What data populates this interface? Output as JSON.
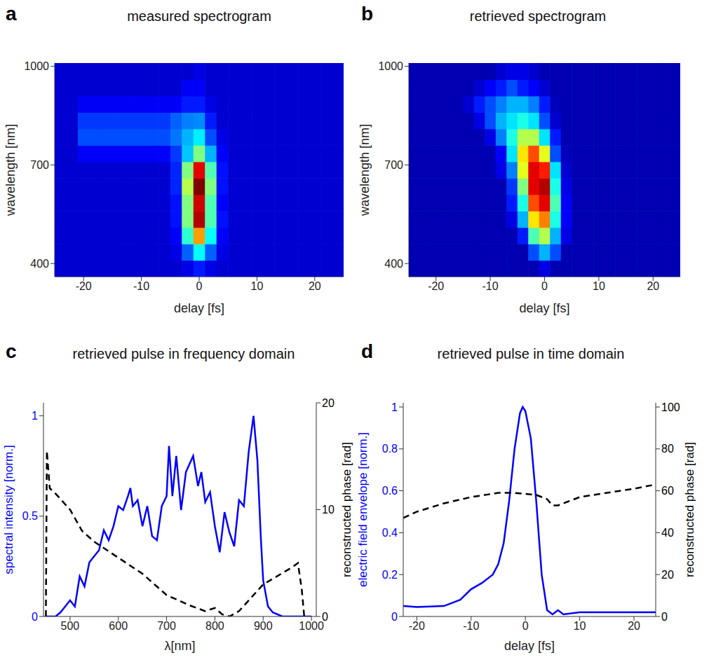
{
  "chart_data": [
    {
      "type": "heatmap",
      "label": "a",
      "title": "measured spectrogram",
      "x_label": "delay [fs]",
      "y_label": "wavelength [nm]",
      "x": [
        -24,
        -22,
        -20,
        -18,
        -16,
        -14,
        -12,
        -10,
        -8,
        -6,
        -4,
        -2,
        0,
        2,
        4,
        6,
        8,
        10,
        12,
        14,
        16,
        18,
        20,
        22,
        24
      ],
      "y": [
        385,
        435,
        485,
        535,
        585,
        635,
        685,
        735,
        785,
        835,
        885,
        935,
        985
      ],
      "cells": [
        [
          0.08,
          0.08,
          0.08,
          0.08,
          0.08,
          0.08,
          0.08,
          0.08,
          0.08,
          0.08,
          0.08,
          0.1,
          0.15,
          0.1,
          0.08,
          0.08,
          0.08,
          0.08,
          0.08,
          0.08,
          0.08,
          0.08,
          0.08,
          0.08,
          0.08
        ],
        [
          0.08,
          0.08,
          0.08,
          0.08,
          0.08,
          0.08,
          0.08,
          0.08,
          0.08,
          0.08,
          0.1,
          0.22,
          0.38,
          0.22,
          0.1,
          0.08,
          0.08,
          0.08,
          0.08,
          0.08,
          0.08,
          0.08,
          0.08,
          0.08,
          0.08
        ],
        [
          0.08,
          0.08,
          0.08,
          0.08,
          0.08,
          0.08,
          0.08,
          0.08,
          0.08,
          0.08,
          0.12,
          0.42,
          0.72,
          0.38,
          0.12,
          0.08,
          0.08,
          0.08,
          0.08,
          0.08,
          0.08,
          0.08,
          0.08,
          0.08,
          0.08
        ],
        [
          0.08,
          0.08,
          0.08,
          0.08,
          0.08,
          0.08,
          0.08,
          0.08,
          0.08,
          0.08,
          0.14,
          0.5,
          0.95,
          0.45,
          0.14,
          0.08,
          0.08,
          0.08,
          0.08,
          0.08,
          0.08,
          0.08,
          0.08,
          0.08,
          0.08
        ],
        [
          0.08,
          0.08,
          0.08,
          0.08,
          0.08,
          0.08,
          0.08,
          0.08,
          0.08,
          0.08,
          0.14,
          0.5,
          0.92,
          0.45,
          0.12,
          0.08,
          0.08,
          0.08,
          0.08,
          0.08,
          0.08,
          0.08,
          0.08,
          0.08,
          0.08
        ],
        [
          0.08,
          0.08,
          0.08,
          0.08,
          0.08,
          0.08,
          0.08,
          0.08,
          0.08,
          0.08,
          0.16,
          0.55,
          1,
          0.5,
          0.14,
          0.08,
          0.08,
          0.08,
          0.08,
          0.08,
          0.08,
          0.08,
          0.08,
          0.08,
          0.08
        ],
        [
          0.08,
          0.08,
          0.08,
          0.08,
          0.08,
          0.08,
          0.08,
          0.08,
          0.08,
          0.08,
          0.16,
          0.5,
          0.9,
          0.45,
          0.14,
          0.08,
          0.08,
          0.08,
          0.08,
          0.08,
          0.08,
          0.08,
          0.08,
          0.08,
          0.08
        ],
        [
          0.08,
          0.08,
          0.12,
          0.12,
          0.12,
          0.12,
          0.12,
          0.12,
          0.12,
          0.12,
          0.18,
          0.32,
          0.5,
          0.3,
          0.12,
          0.08,
          0.08,
          0.08,
          0.08,
          0.08,
          0.08,
          0.08,
          0.08,
          0.08,
          0.08
        ],
        [
          0.08,
          0.08,
          0.2,
          0.2,
          0.2,
          0.2,
          0.2,
          0.2,
          0.2,
          0.2,
          0.24,
          0.3,
          0.36,
          0.2,
          0.1,
          0.08,
          0.08,
          0.08,
          0.08,
          0.08,
          0.08,
          0.08,
          0.08,
          0.08,
          0.08
        ],
        [
          0.08,
          0.08,
          0.18,
          0.18,
          0.18,
          0.18,
          0.18,
          0.18,
          0.18,
          0.18,
          0.22,
          0.25,
          0.26,
          0.15,
          0.08,
          0.08,
          0.08,
          0.08,
          0.08,
          0.08,
          0.08,
          0.08,
          0.08,
          0.08,
          0.08
        ],
        [
          0.08,
          0.08,
          0.12,
          0.12,
          0.12,
          0.12,
          0.12,
          0.12,
          0.12,
          0.12,
          0.12,
          0.15,
          0.15,
          0.1,
          0.08,
          0.08,
          0.08,
          0.08,
          0.08,
          0.08,
          0.08,
          0.08,
          0.08,
          0.08,
          0.08
        ],
        [
          0.08,
          0.08,
          0.08,
          0.08,
          0.08,
          0.08,
          0.08,
          0.08,
          0.08,
          0.08,
          0.08,
          0.12,
          0.12,
          0.08,
          0.08,
          0.08,
          0.08,
          0.08,
          0.08,
          0.08,
          0.08,
          0.08,
          0.08,
          0.08,
          0.08
        ],
        [
          0.08,
          0.08,
          0.08,
          0.08,
          0.08,
          0.08,
          0.08,
          0.08,
          0.08,
          0.08,
          0.08,
          0.08,
          0.1,
          0.08,
          0.08,
          0.08,
          0.08,
          0.08,
          0.08,
          0.08,
          0.08,
          0.08,
          0.08,
          0.08,
          0.08
        ]
      ],
      "color_range": [
        0,
        1
      ],
      "xlim": [
        -25,
        25
      ],
      "xticks": [
        -20,
        -10,
        0,
        10,
        20
      ],
      "ylim": [
        360,
        1010
      ],
      "yticks": [
        400,
        700,
        1000
      ]
    },
    {
      "type": "heatmap",
      "label": "b",
      "title": "retrieved spectrogram",
      "x_label": "delay [fs]",
      "y_label": "wavelength [nm]",
      "x": [
        -24,
        -22,
        -20,
        -18,
        -16,
        -14,
        -12,
        -10,
        -8,
        -6,
        -4,
        -2,
        0,
        2,
        4,
        6,
        8,
        10,
        12,
        14,
        16,
        18,
        20,
        22,
        24
      ],
      "y": [
        385,
        435,
        485,
        535,
        585,
        635,
        685,
        735,
        785,
        835,
        885,
        935,
        985
      ],
      "cells": [
        [
          0.05,
          0.05,
          0.05,
          0.05,
          0.05,
          0.05,
          0.05,
          0.05,
          0.05,
          0.05,
          0.05,
          0.05,
          0.1,
          0.05,
          0.05,
          0.05,
          0.05,
          0.05,
          0.05,
          0.05,
          0.05,
          0.05,
          0.05,
          0.05,
          0.05
        ],
        [
          0.05,
          0.05,
          0.05,
          0.05,
          0.05,
          0.05,
          0.05,
          0.05,
          0.05,
          0.05,
          0.05,
          0.2,
          0.3,
          0.2,
          0.05,
          0.05,
          0.05,
          0.05,
          0.05,
          0.05,
          0.05,
          0.05,
          0.05,
          0.05,
          0.05
        ],
        [
          0.05,
          0.05,
          0.05,
          0.05,
          0.05,
          0.05,
          0.05,
          0.05,
          0.05,
          0.05,
          0.15,
          0.45,
          0.55,
          0.3,
          0.1,
          0.05,
          0.05,
          0.05,
          0.05,
          0.05,
          0.05,
          0.05,
          0.05,
          0.05,
          0.05
        ],
        [
          0.05,
          0.05,
          0.05,
          0.05,
          0.05,
          0.05,
          0.05,
          0.05,
          0.05,
          0.1,
          0.3,
          0.65,
          0.75,
          0.4,
          0.12,
          0.05,
          0.05,
          0.05,
          0.05,
          0.05,
          0.05,
          0.05,
          0.05,
          0.05,
          0.05
        ],
        [
          0.05,
          0.05,
          0.05,
          0.05,
          0.05,
          0.05,
          0.05,
          0.05,
          0.05,
          0.15,
          0.4,
          0.8,
          0.9,
          0.45,
          0.12,
          0.05,
          0.05,
          0.05,
          0.05,
          0.05,
          0.05,
          0.05,
          0.05,
          0.05,
          0.05
        ],
        [
          0.05,
          0.05,
          0.05,
          0.05,
          0.05,
          0.05,
          0.05,
          0.05,
          0.05,
          0.18,
          0.5,
          0.9,
          0.95,
          0.4,
          0.1,
          0.05,
          0.05,
          0.05,
          0.05,
          0.05,
          0.05,
          0.05,
          0.05,
          0.05,
          0.05
        ],
        [
          0.05,
          0.05,
          0.05,
          0.05,
          0.05,
          0.05,
          0.05,
          0.05,
          0.1,
          0.25,
          0.6,
          0.9,
          0.85,
          0.35,
          0.08,
          0.05,
          0.05,
          0.05,
          0.05,
          0.05,
          0.05,
          0.05,
          0.05,
          0.05,
          0.05
        ],
        [
          0.05,
          0.05,
          0.05,
          0.05,
          0.05,
          0.05,
          0.05,
          0.05,
          0.12,
          0.35,
          0.65,
          0.8,
          0.6,
          0.2,
          0.06,
          0.05,
          0.05,
          0.05,
          0.05,
          0.05,
          0.05,
          0.05,
          0.05,
          0.05,
          0.05
        ],
        [
          0.05,
          0.05,
          0.05,
          0.05,
          0.05,
          0.05,
          0.05,
          0.1,
          0.25,
          0.4,
          0.55,
          0.55,
          0.35,
          0.15,
          0.05,
          0.05,
          0.05,
          0.05,
          0.05,
          0.05,
          0.05,
          0.05,
          0.05,
          0.05,
          0.05
        ],
        [
          0.05,
          0.05,
          0.05,
          0.05,
          0.05,
          0.05,
          0.1,
          0.2,
          0.3,
          0.35,
          0.4,
          0.35,
          0.2,
          0.08,
          0.05,
          0.05,
          0.05,
          0.05,
          0.05,
          0.05,
          0.05,
          0.05,
          0.05,
          0.05,
          0.05
        ],
        [
          0.05,
          0.05,
          0.05,
          0.05,
          0.05,
          0.08,
          0.15,
          0.2,
          0.25,
          0.3,
          0.3,
          0.25,
          0.15,
          0.06,
          0.05,
          0.05,
          0.05,
          0.05,
          0.05,
          0.05,
          0.05,
          0.05,
          0.05,
          0.05,
          0.05
        ],
        [
          0.05,
          0.05,
          0.05,
          0.05,
          0.05,
          0.05,
          0.08,
          0.12,
          0.15,
          0.2,
          0.15,
          0.12,
          0.08,
          0.05,
          0.05,
          0.05,
          0.05,
          0.05,
          0.05,
          0.05,
          0.05,
          0.05,
          0.05,
          0.05,
          0.05
        ],
        [
          0.05,
          0.05,
          0.05,
          0.05,
          0.05,
          0.05,
          0.05,
          0.05,
          0.08,
          0.1,
          0.1,
          0.08,
          0.05,
          0.05,
          0.05,
          0.05,
          0.05,
          0.05,
          0.05,
          0.05,
          0.05,
          0.05,
          0.05,
          0.05,
          0.05
        ]
      ],
      "color_range": [
        0,
        1
      ],
      "xlim": [
        -25,
        25
      ],
      "xticks": [
        -20,
        -10,
        0,
        10,
        20
      ],
      "ylim": [
        360,
        1010
      ],
      "yticks": [
        400,
        700,
        1000
      ]
    },
    {
      "type": "line",
      "label": "c",
      "title": "retrieved pulse in frequency domain",
      "x_label": "λ[nm]",
      "y_label": "spectral intensity [norm.]",
      "y2_label": "reconstructed phase [rad]",
      "xlim": [
        445,
        1010
      ],
      "xticks": [
        500,
        600,
        700,
        800,
        900,
        1000
      ],
      "ylim": [
        0,
        1.065
      ],
      "yticks": [
        0,
        0.5,
        1
      ],
      "y2lim": [
        0,
        20
      ],
      "y2ticks": [
        0,
        10,
        20
      ],
      "series": [
        {
          "color": "#0000ff",
          "line_style": "solid",
          "x": [
            450,
            470,
            480,
            490,
            500,
            510,
            520,
            530,
            540,
            550,
            560,
            570,
            580,
            590,
            600,
            610,
            620,
            625,
            630,
            640,
            650,
            660,
            670,
            680,
            690,
            700,
            705,
            712,
            720,
            730,
            740,
            755,
            765,
            772,
            780,
            790,
            800,
            810,
            820,
            830,
            840,
            850,
            860,
            870,
            880,
            888,
            895,
            900,
            910,
            920,
            940,
            1000
          ],
          "values": [
            0,
            0,
            0.02,
            0.05,
            0.08,
            0.05,
            0.2,
            0.15,
            0.27,
            0.3,
            0.33,
            0.43,
            0.38,
            0.45,
            0.55,
            0.53,
            0.6,
            0.64,
            0.55,
            0.58,
            0.45,
            0.55,
            0.4,
            0.38,
            0.55,
            0.6,
            0.85,
            0.6,
            0.8,
            0.53,
            0.72,
            0.8,
            0.65,
            0.72,
            0.57,
            0.62,
            0.45,
            0.32,
            0.52,
            0.42,
            0.35,
            0.58,
            0.55,
            0.82,
            1,
            0.78,
            0.4,
            0.18,
            0.05,
            0.02,
            0,
            0
          ]
        },
        {
          "color": "#000000",
          "line_style": "dashed",
          "axis": "y2",
          "x": [
            450,
            452,
            458,
            470,
            500,
            525,
            550,
            600,
            650,
            700,
            750,
            780,
            800,
            815,
            830,
            850,
            870,
            900,
            930,
            960,
            972,
            980,
            985
          ],
          "values": [
            0,
            15.5,
            12,
            11.5,
            10,
            8,
            7,
            5.5,
            4,
            2,
            1,
            0.5,
            0.8,
            0.2,
            0,
            0.5,
            1.5,
            3,
            3.8,
            4.6,
            5,
            2.5,
            0
          ]
        }
      ]
    },
    {
      "type": "line",
      "label": "d",
      "title": "retrieved pulse in time domain",
      "x_label": "delay [fs]",
      "y_label": "electric field envelope [norm.]",
      "y2_label": "reconstructed phase [rad]",
      "xlim": [
        -22.5,
        24
      ],
      "xticks": [
        -20,
        -10,
        0,
        10,
        20
      ],
      "ylim": [
        0,
        1.02
      ],
      "yticks": [
        0,
        0.2,
        0.4,
        0.6,
        0.8,
        1
      ],
      "y2lim": [
        0,
        102
      ],
      "y2ticks": [
        0,
        20,
        40,
        60,
        80,
        100
      ],
      "series": [
        {
          "color": "#0000ff",
          "line_style": "solid",
          "x": [
            -22.5,
            -20,
            -15,
            -12,
            -10,
            -8,
            -6,
            -5,
            -4,
            -3,
            -2,
            -1,
            -0.5,
            0,
            1,
            2,
            3,
            4,
            5,
            6,
            7,
            10,
            15,
            20,
            24
          ],
          "values": [
            0.05,
            0.045,
            0.05,
            0.08,
            0.13,
            0.16,
            0.2,
            0.25,
            0.35,
            0.55,
            0.8,
            0.97,
            1,
            0.98,
            0.85,
            0.55,
            0.2,
            0.03,
            0.01,
            0.03,
            0.01,
            0.02,
            0.02,
            0.02,
            0.02
          ]
        },
        {
          "color": "#000000",
          "line_style": "dashed",
          "axis": "y2",
          "x": [
            -22.5,
            -20,
            -15,
            -10,
            -5,
            -2,
            0,
            2,
            4,
            5,
            6,
            8,
            10,
            15,
            20,
            24
          ],
          "values": [
            47,
            50,
            54,
            57,
            59,
            59,
            58.5,
            58,
            56,
            53,
            53,
            55,
            57,
            59,
            61,
            63
          ]
        }
      ]
    }
  ]
}
